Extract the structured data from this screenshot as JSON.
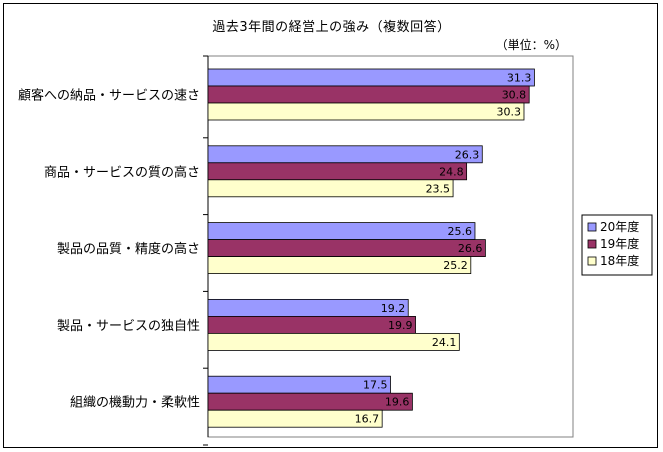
{
  "chart_data": {
    "type": "bar",
    "orientation": "horizontal",
    "title": "過去3年間の経営上の強み（複数回答）",
    "unit": "（単位：%）",
    "categories": [
      "顧客への納品・サービスの速さ",
      "商品・サービスの質の高さ",
      "製品の品質・精度の高さ",
      "製品・サービスの独自性",
      "組織の機動力・柔軟性"
    ],
    "series": [
      {
        "name": "20年度",
        "color": "#9999ff",
        "values": [
          31.3,
          26.3,
          25.6,
          19.2,
          17.5
        ]
      },
      {
        "name": "19年度",
        "color": "#993366",
        "values": [
          30.8,
          24.8,
          26.6,
          19.9,
          19.6
        ]
      },
      {
        "name": "18年度",
        "color": "#ffffcc",
        "values": [
          30.3,
          23.5,
          25.2,
          24.1,
          16.7
        ]
      }
    ],
    "xlim": [
      0,
      35
    ],
    "grid": false,
    "legend_position": "right"
  }
}
